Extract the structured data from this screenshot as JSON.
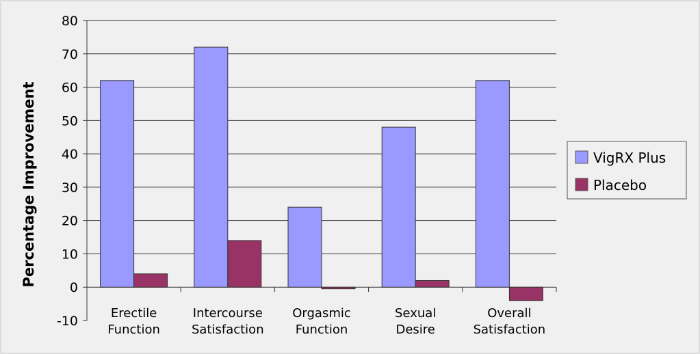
{
  "chart_data": {
    "type": "bar",
    "categories": [
      [
        "Erectile",
        "Function"
      ],
      [
        "Intercourse",
        "Satisfaction"
      ],
      [
        "Orgasmic",
        "Function"
      ],
      [
        "Sexual",
        "Desire"
      ],
      [
        "Overall",
        "Satisfaction"
      ]
    ],
    "series": [
      {
        "name": "VigRX Plus",
        "values": [
          62,
          72,
          24,
          48,
          62
        ],
        "color": "#9999ff"
      },
      {
        "name": "Placebo",
        "values": [
          4,
          14,
          -0.5,
          2,
          -4
        ],
        "color": "#993366"
      }
    ],
    "ylabel": "Percentage Improvement",
    "ylim": [
      -10,
      80
    ],
    "yticks": [
      80,
      70,
      60,
      50,
      40,
      30,
      20,
      10,
      0,
      -10
    ],
    "grid": true,
    "legend_position": "right"
  }
}
